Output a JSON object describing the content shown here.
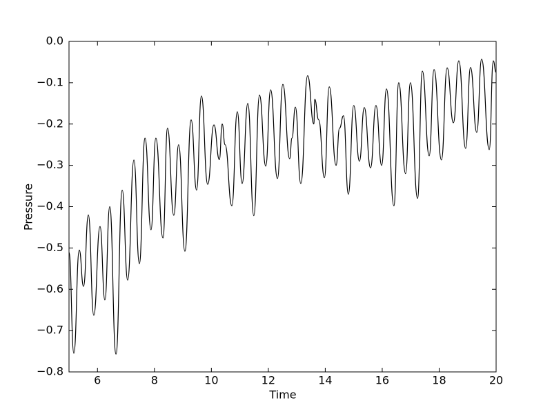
{
  "chart_data": {
    "type": "line",
    "xlabel": "Time",
    "ylabel": "Pressure",
    "x": [
      5.0,
      5.17,
      5.36,
      5.51,
      5.68,
      5.87,
      6.09,
      6.26,
      6.43,
      6.65,
      6.87,
      7.06,
      7.28,
      7.47,
      7.67,
      7.88,
      8.05,
      8.3,
      8.46,
      8.68,
      8.85,
      9.07,
      9.29,
      9.48,
      9.65,
      9.87,
      10.09,
      10.28,
      10.38,
      10.48,
      10.72,
      10.91,
      11.08,
      11.28,
      11.49,
      11.69,
      11.91,
      12.08,
      12.32,
      12.51,
      12.75,
      12.83,
      12.95,
      13.14,
      13.38,
      13.6,
      13.63,
      13.77,
      13.97,
      14.14,
      14.38,
      14.5,
      14.64,
      14.81,
      15.0,
      15.2,
      15.37,
      15.59,
      15.78,
      15.98,
      16.15,
      16.41,
      16.58,
      16.82,
      16.99,
      17.24,
      17.41,
      17.65,
      17.82,
      18.08,
      18.28,
      18.5,
      18.69,
      18.93,
      19.1,
      19.32,
      19.49,
      19.76,
      19.9,
      20.0
    ],
    "series": [
      {
        "color": "#000000",
        "values": [
          -0.51,
          -0.755,
          -0.505,
          -0.593,
          -0.42,
          -0.663,
          -0.448,
          -0.626,
          -0.4,
          -0.757,
          -0.36,
          -0.578,
          -0.287,
          -0.538,
          -0.234,
          -0.456,
          -0.234,
          -0.476,
          -0.21,
          -0.421,
          -0.25,
          -0.508,
          -0.19,
          -0.36,
          -0.132,
          -0.346,
          -0.202,
          -0.286,
          -0.2,
          -0.25,
          -0.398,
          -0.17,
          -0.344,
          -0.15,
          -0.422,
          -0.13,
          -0.302,
          -0.117,
          -0.332,
          -0.104,
          -0.284,
          -0.234,
          -0.159,
          -0.344,
          -0.083,
          -0.2,
          -0.14,
          -0.19,
          -0.33,
          -0.11,
          -0.3,
          -0.21,
          -0.18,
          -0.37,
          -0.155,
          -0.29,
          -0.16,
          -0.306,
          -0.155,
          -0.3,
          -0.115,
          -0.398,
          -0.1,
          -0.32,
          -0.1,
          -0.38,
          -0.072,
          -0.277,
          -0.068,
          -0.287,
          -0.064,
          -0.197,
          -0.047,
          -0.259,
          -0.063,
          -0.22,
          -0.043,
          -0.262,
          -0.047,
          -0.075
        ]
      }
    ],
    "xlim": [
      5,
      20
    ],
    "ylim": [
      -0.8,
      0
    ],
    "xticks": [
      6,
      8,
      10,
      12,
      14,
      16,
      18,
      20
    ],
    "yticks": [
      {
        "value": 0,
        "label": "0.0"
      },
      {
        "value": -0.1,
        "label": "−0.1"
      },
      {
        "value": -0.2,
        "label": "−0.2"
      },
      {
        "value": -0.3,
        "label": "−0.3"
      },
      {
        "value": -0.4,
        "label": "−0.4"
      },
      {
        "value": -0.5,
        "label": "−0.5"
      },
      {
        "value": -0.6,
        "label": "−0.6"
      },
      {
        "value": -0.7,
        "label": "−0.7"
      },
      {
        "value": -0.8,
        "label": "−0.8"
      }
    ],
    "grid": false
  }
}
